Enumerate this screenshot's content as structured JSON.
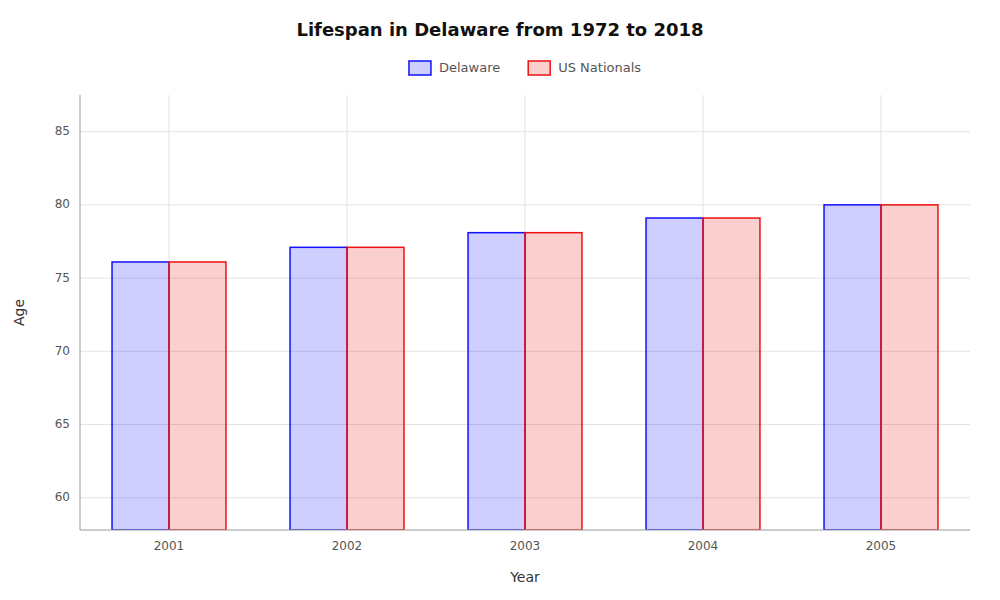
{
  "chart_data": {
    "type": "bar",
    "title": "Lifespan in Delaware from 1972 to 2018",
    "x_label": "Year",
    "y_label": "Age",
    "categories": [
      2001,
      2002,
      2003,
      2004,
      2005
    ],
    "series": [
      {
        "name": "Delaware",
        "color": "#1111ff",
        "values": [
          76.1,
          77.1,
          78.1,
          79.1,
          80.0
        ]
      },
      {
        "name": "US Nationals",
        "color": "#ee1111",
        "values": [
          76.1,
          77.1,
          78.1,
          79.1,
          80.0
        ]
      }
    ],
    "ylim": [
      57.8,
      87.5
    ],
    "yticks": [
      60,
      65,
      70,
      75,
      80,
      85
    ],
    "grid": true,
    "legend": "top"
  }
}
